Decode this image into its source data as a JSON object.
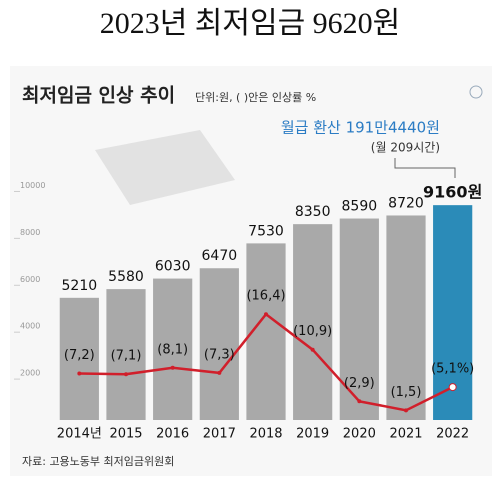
{
  "page_title": "2023년 최저임금 9620원",
  "chart_data": {
    "type": "bar",
    "title": "최저임금 인상 추이",
    "subtitle": "단위:원, ( )안은 인상률 %",
    "annotation": "월급 환산 191만4440원",
    "annotation_note": "(월 209시간)",
    "source": "자료: 고용노동부 최저임금위원회",
    "categories": [
      "2014년",
      "2015",
      "2016",
      "2017",
      "2018",
      "2019",
      "2020",
      "2021",
      "2022"
    ],
    "series": [
      {
        "name": "최저임금",
        "type": "bar",
        "color": "#a9a9a9",
        "highlight_color": "#2b8bb8",
        "values": [
          5210,
          5580,
          6030,
          6470,
          7530,
          8350,
          8590,
          8720,
          9160
        ],
        "value_labels": [
          "5210",
          "5580",
          "6030",
          "6470",
          "7530",
          "8350",
          "8590",
          "8720",
          "9160원"
        ]
      },
      {
        "name": "인상률",
        "type": "line",
        "axis": "y2",
        "color": "#d11f2b",
        "values": [
          7.2,
          7.1,
          8.1,
          7.3,
          16.4,
          10.9,
          2.9,
          1.5,
          5.1
        ],
        "value_labels": [
          "(7,2)",
          "(7,1)",
          "(8,1)",
          "(7,3)",
          "(16,4)",
          "(10,9)",
          "(2,9)",
          "(1,5)",
          "(5,1%)"
        ]
      }
    ],
    "ylim": [
      0,
      11000
    ],
    "yticks": [
      2000,
      4000,
      6000,
      8000,
      10000
    ],
    "y2lim": [
      0,
      40
    ]
  }
}
